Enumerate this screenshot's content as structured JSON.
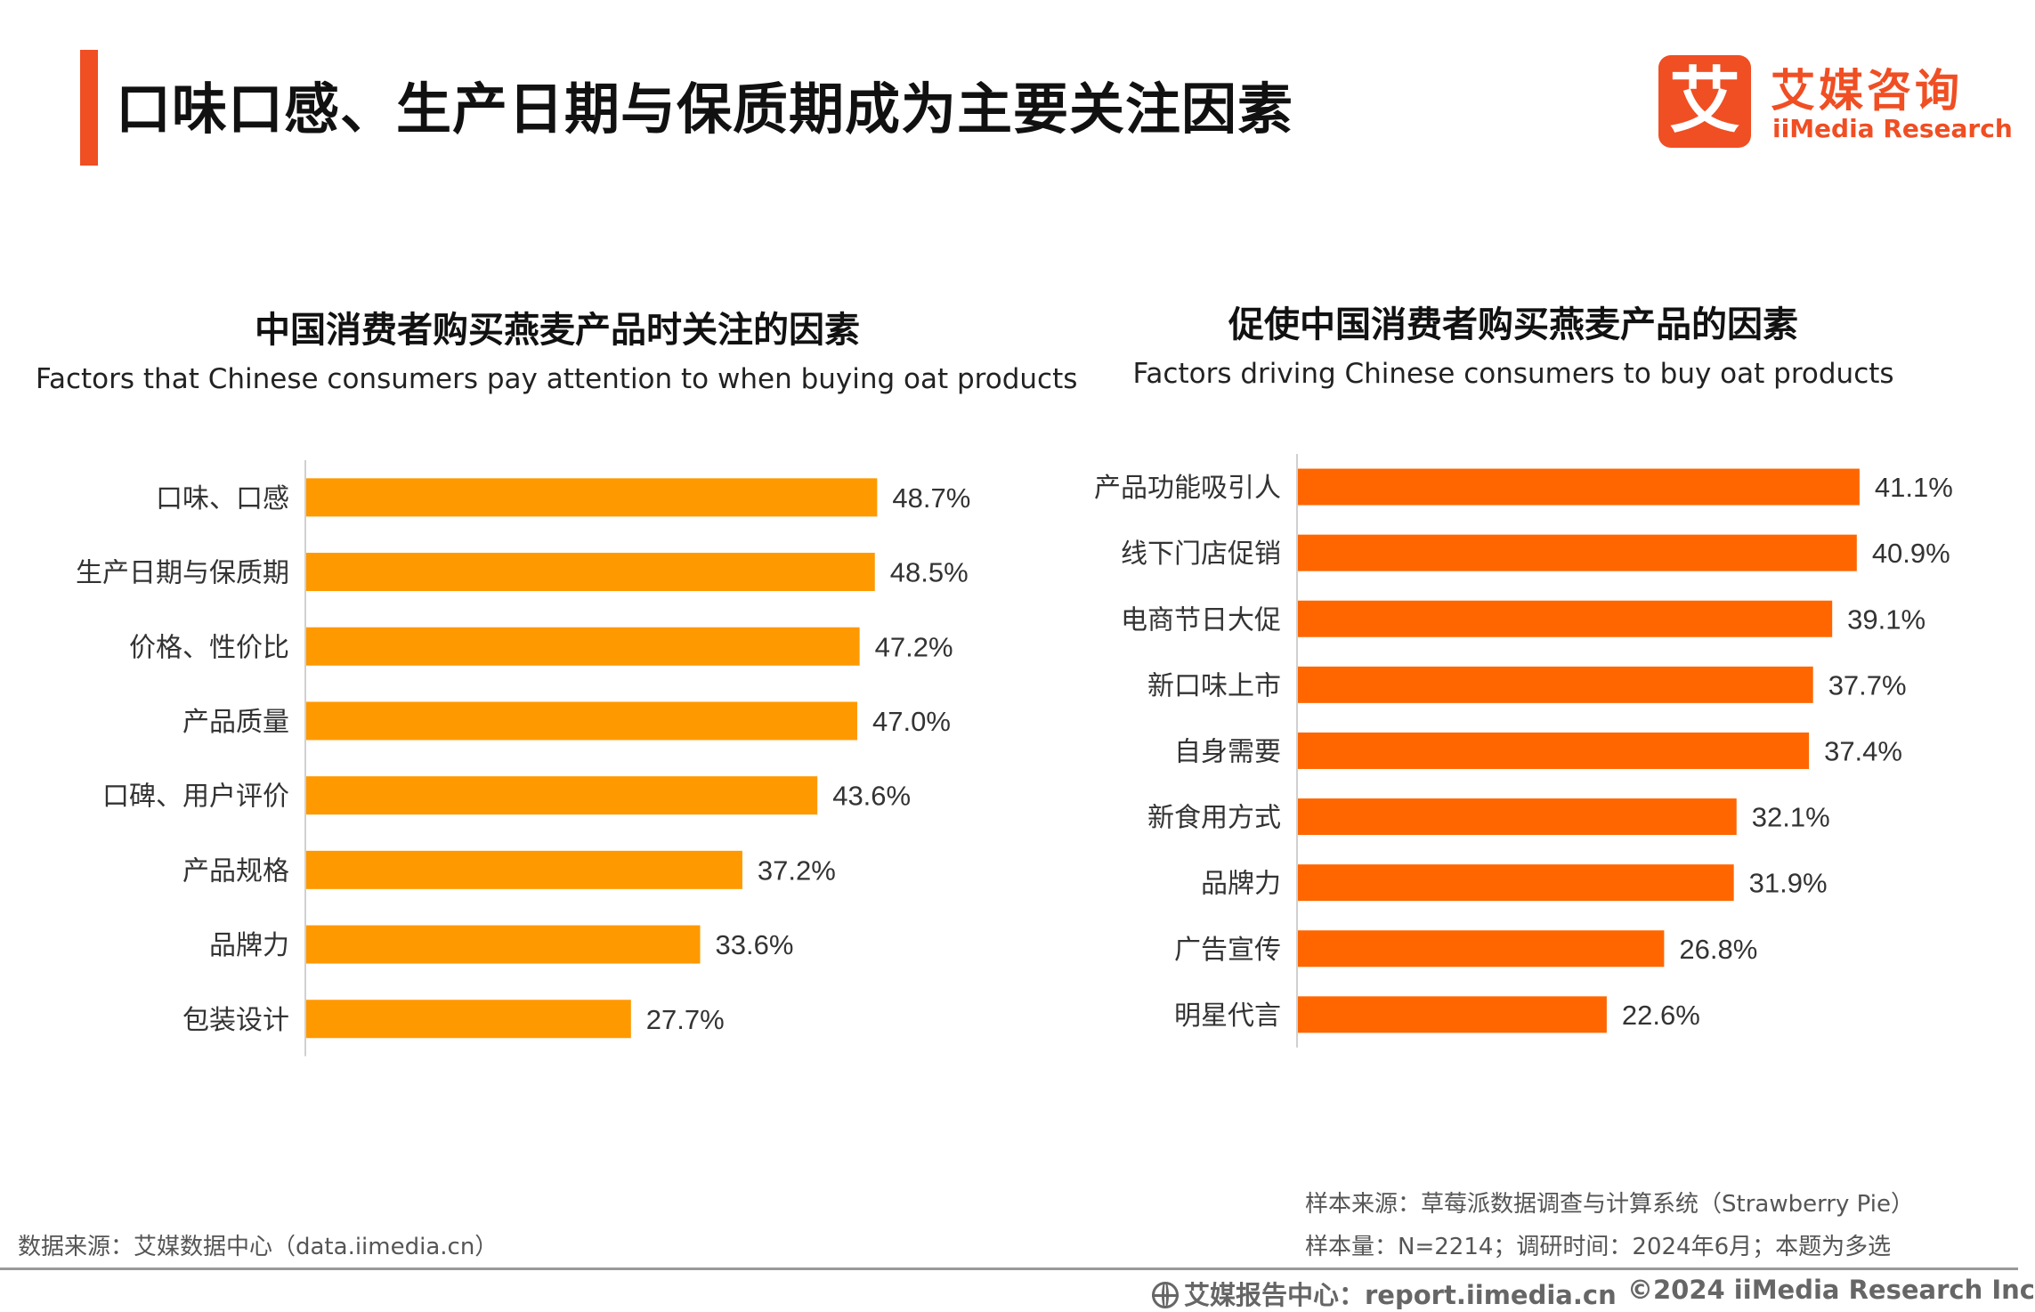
{
  "header": {
    "title": "口味口感、生产日期与保质期成为主要关注因素"
  },
  "logo": {
    "glyph": "艾",
    "name_cn": "艾媒咨询",
    "name_en": "iiMedia Research"
  },
  "colors": {
    "accent": "#f04e23",
    "left_bars": "#ff9900",
    "right_bars": "#ff6600"
  },
  "chart_data": [
    {
      "type": "bar",
      "orientation": "horizontal",
      "title": "中国消费者购买燕麦产品时关注的因素",
      "subtitle": "Factors that Chinese consumers pay attention to when buying oat products",
      "categories": [
        "口味、口感",
        "生产日期与保质期",
        "价格、性价比",
        "产品质量",
        "口碑、用户评价",
        "产品规格",
        "品牌力",
        "包装设计"
      ],
      "values": [
        48.7,
        48.5,
        47.2,
        47.0,
        43.6,
        37.2,
        33.6,
        27.7
      ],
      "value_labels": [
        "48.7%",
        "48.5%",
        "47.2%",
        "47.0%",
        "43.6%",
        "37.2%",
        "33.6%",
        "27.7%"
      ],
      "unit": "%",
      "color": "#ff9900",
      "grid": false,
      "legend": "none"
    },
    {
      "type": "bar",
      "orientation": "horizontal",
      "title": "促使中国消费者购买燕麦产品的因素",
      "subtitle": "Factors driving Chinese consumers to buy oat products",
      "categories": [
        "产品功能吸引人",
        "线下门店促销",
        "电商节日大促",
        "新口味上市",
        "自身需要",
        "新食用方式",
        "品牌力",
        "广告宣传",
        "明星代言"
      ],
      "values": [
        41.1,
        40.9,
        39.1,
        37.7,
        37.4,
        32.1,
        31.9,
        26.8,
        22.6
      ],
      "value_labels": [
        "41.1%",
        "40.9%",
        "39.1%",
        "37.7%",
        "37.4%",
        "32.1%",
        "31.9%",
        "26.8%",
        "22.6%"
      ],
      "unit": "%",
      "color": "#ff6600",
      "grid": false,
      "legend": "none"
    }
  ],
  "notes": {
    "sample_source": "样本来源：草莓派数据调查与计算系统（Strawberry Pie）",
    "sample_size": "样本量：N=2214；调研时间：2024年6月；本题为多选",
    "data_source": "数据来源：艾媒数据中心（data.iimedia.cn）"
  },
  "footer": {
    "report_center": "艾媒报告中心：report.iimedia.cn",
    "copyright": "©2024  iiMedia Research Inc"
  }
}
